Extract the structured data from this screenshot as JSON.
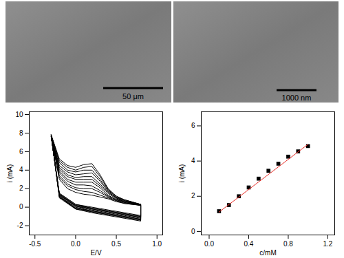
{
  "images": [
    {
      "scale_bar": "50 μm"
    },
    {
      "scale_bar": "1000 nm"
    }
  ],
  "chart_data": [
    {
      "type": "line",
      "xlabel": "E/V",
      "ylabel": "i (mA)",
      "xlim": [
        -0.57,
        1.07
      ],
      "ylim": [
        -3,
        10.3
      ],
      "xticks": [
        -0.5,
        {
          "value": 0,
          "label": "0.0"
        },
        0.5,
        {
          "value": 1,
          "label": "1.0"
        }
      ],
      "yticks": [
        -2,
        0,
        2,
        4,
        6,
        8,
        10
      ],
      "grid": false,
      "x": [
        -0.3,
        -0.2,
        -0.1,
        0,
        0.1,
        0.2,
        0.3,
        0.4,
        0.5,
        0.6,
        0.8,
        0.8,
        0.6,
        0.4,
        0.2,
        0,
        -0.2,
        -0.3
      ],
      "series": [
        {
          "color": "#000000",
          "values": [
            7.6,
            3.0,
            2.0,
            1.6,
            1.4,
            1.3,
            1.1,
            0.9,
            0.6,
            0.4,
            0.2,
            -0.9,
            -0.6,
            -0.3,
            0.0,
            0.3,
            1.5,
            7.6
          ]
        },
        {
          "color": "#000000",
          "values": [
            7.6,
            3.2,
            2.3,
            1.9,
            1.7,
            1.6,
            1.3,
            1.0,
            0.7,
            0.4,
            0.2,
            -1.0,
            -0.7,
            -0.4,
            -0.1,
            0.3,
            1.5,
            7.6
          ]
        },
        {
          "color": "#000000",
          "values": [
            7.6,
            3.4,
            2.5,
            2.1,
            2.0,
            2.0,
            1.6,
            1.1,
            0.7,
            0.5,
            0.2,
            -1.0,
            -0.7,
            -0.4,
            -0.1,
            0.2,
            1.4,
            7.6
          ]
        },
        {
          "color": "#000000",
          "values": [
            7.7,
            3.7,
            2.8,
            2.4,
            2.4,
            2.3,
            1.8,
            1.2,
            0.8,
            0.5,
            0.2,
            -1.1,
            -0.8,
            -0.5,
            -0.2,
            0.2,
            1.4,
            7.7
          ]
        },
        {
          "color": "#000000",
          "values": [
            7.7,
            3.9,
            3.0,
            2.7,
            2.7,
            2.7,
            2.1,
            1.3,
            0.8,
            0.6,
            0.2,
            -1.1,
            -0.8,
            -0.5,
            -0.2,
            0.1,
            1.3,
            7.7
          ]
        },
        {
          "color": "#000000",
          "values": [
            7.7,
            4.1,
            3.3,
            3.0,
            3.0,
            3.0,
            2.3,
            1.5,
            0.9,
            0.6,
            0.3,
            -1.2,
            -0.9,
            -0.6,
            -0.3,
            0.1,
            1.3,
            7.7
          ]
        },
        {
          "color": "#000000",
          "values": [
            7.7,
            4.3,
            3.5,
            3.2,
            3.3,
            3.3,
            2.5,
            1.6,
            1.0,
            0.6,
            0.3,
            -1.3,
            -1.0,
            -0.7,
            -0.4,
            0.0,
            1.2,
            7.7
          ]
        },
        {
          "color": "#000000",
          "values": [
            7.7,
            4.5,
            3.8,
            3.5,
            3.6,
            3.7,
            2.8,
            1.7,
            1.0,
            0.7,
            0.3,
            -1.3,
            -1.0,
            -0.7,
            -0.4,
            -0.1,
            1.2,
            7.7
          ]
        },
        {
          "color": "#000000",
          "values": [
            7.8,
            4.8,
            4.0,
            3.8,
            4.0,
            4.0,
            3.0,
            1.8,
            1.1,
            0.7,
            0.3,
            -1.4,
            -1.1,
            -0.8,
            -0.5,
            -0.1,
            1.1,
            7.8
          ]
        },
        {
          "color": "#000000",
          "values": [
            7.8,
            5.0,
            4.3,
            4.0,
            4.3,
            4.4,
            3.3,
            1.9,
            1.1,
            0.8,
            0.3,
            -1.4,
            -1.1,
            -0.8,
            -0.5,
            -0.2,
            1.1,
            7.8
          ]
        },
        {
          "color": "#000000",
          "values": [
            7.8,
            5.2,
            4.5,
            4.3,
            4.6,
            4.7,
            3.5,
            2.0,
            1.2,
            0.8,
            0.3,
            -1.5,
            -1.2,
            -0.9,
            -0.6,
            -0.2,
            1.0,
            7.8
          ]
        }
      ]
    },
    {
      "type": "scatter",
      "xlabel": "c/mM",
      "ylabel": "i (mA)",
      "xlim": [
        -0.08,
        1.27
      ],
      "ylim": [
        -0.2,
        6.8
      ],
      "xticks": [
        {
          "value": 0,
          "label": "0.0"
        },
        0.4,
        0.8,
        1.2
      ],
      "yticks": [
        0,
        2,
        4,
        6
      ],
      "grid": false,
      "series": [
        {
          "type": "scatter",
          "marker": "square",
          "color": "#000000",
          "x": [
            0.1,
            0.2,
            0.3,
            0.4,
            0.5,
            0.6,
            0.7,
            0.8,
            0.9,
            1.0
          ],
          "values": [
            1.15,
            1.5,
            2.0,
            2.5,
            3.0,
            3.45,
            3.85,
            4.25,
            4.55,
            4.85
          ]
        },
        {
          "type": "line",
          "color": "#e8302a",
          "x": [
            0.1,
            1.0
          ],
          "values": [
            1.1,
            4.95
          ]
        }
      ]
    }
  ]
}
